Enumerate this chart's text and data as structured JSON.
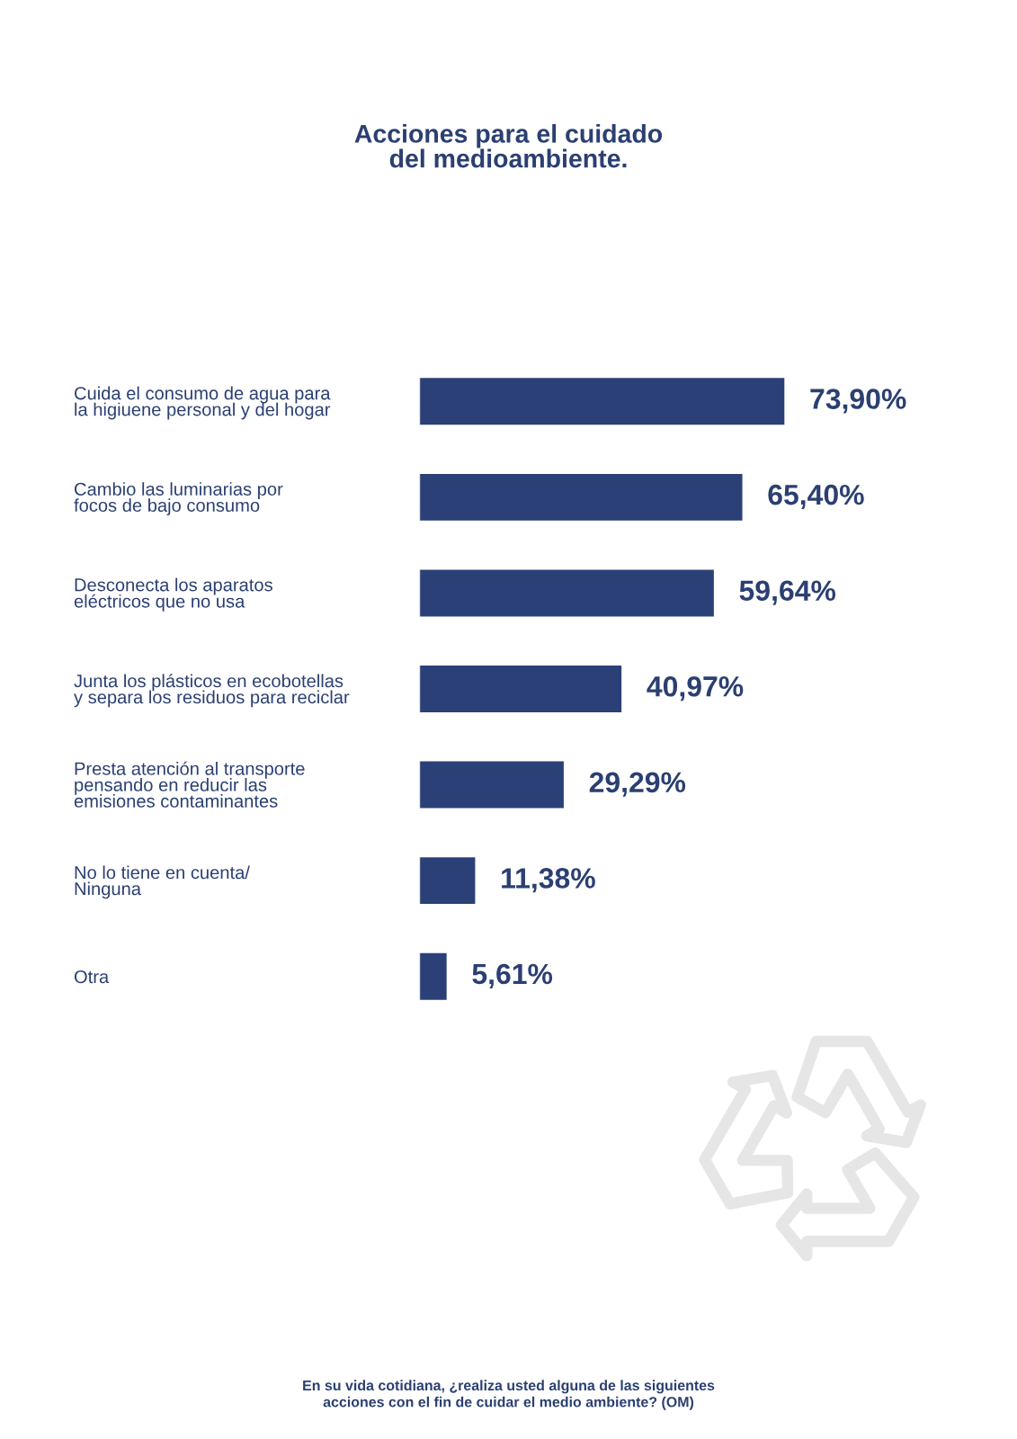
{
  "chart_data": {
    "type": "bar",
    "orientation": "horizontal",
    "title": "Acciones para el cuidado\ndel medioambiente.",
    "categories": [
      "Cuida el consumo de agua para\nla higiuene personal y del hogar",
      "Cambio las luminarias por\nfocos de bajo consumo",
      "Desconecta los aparatos\neléctricos que no usa",
      "Junta los plásticos en ecobotellas\ny separa los residuos para reciclar",
      "Presta atención al transporte\npensando en reducir las\nemisiones contaminantes",
      "No lo tiene en cuenta/\nNinguna",
      "Otra"
    ],
    "values": [
      73.9,
      65.4,
      59.64,
      40.97,
      29.29,
      11.38,
      5.61
    ],
    "value_labels": [
      "73,90%",
      "65,40%",
      "59,64%",
      "40,97%",
      "29,29%",
      "11,38%",
      "5,61%"
    ],
    "color": "#2b4077",
    "tick_labels": "y",
    "grid": false,
    "legend": false,
    "annotations": [
      "En su vida cotidiana, ¿realiza usted alguna de las siguientes\nacciones con el fin de cuidar el medio ambiente? (OM)"
    ]
  }
}
